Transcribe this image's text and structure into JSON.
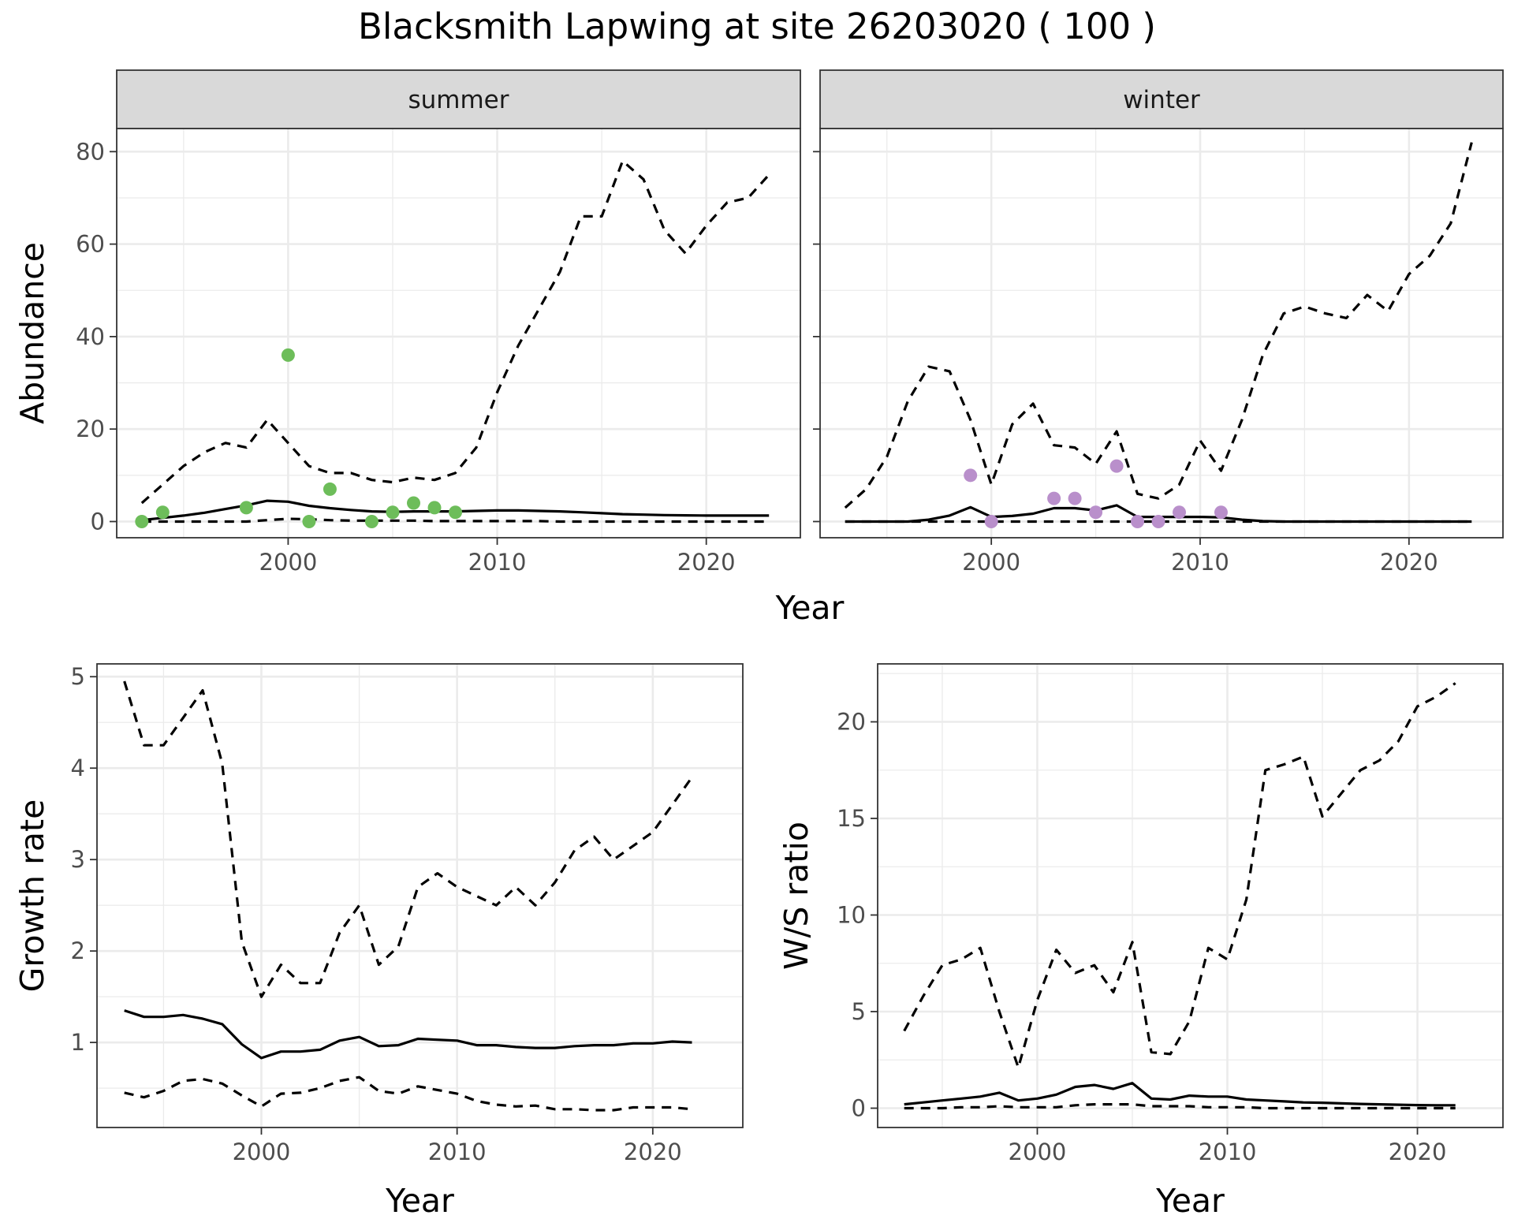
{
  "title": "Blacksmith Lapwing at site 26203020 ( 100 )",
  "colors": {
    "summer_points": "#6dbd5a",
    "winter_points": "#b98fcb",
    "line": "#000000",
    "strip_fill": "#d9d9d9",
    "grid": "#ebebeb"
  },
  "chart_data": [
    {
      "type": "scatter",
      "facet": "summer",
      "xlabel": "Year",
      "ylabel": "Abundance",
      "xlim": [
        1991.8,
        2024.5
      ],
      "ylim": [
        -3.5,
        85
      ],
      "xticks": [
        2000,
        2010,
        2020
      ],
      "yticks": [
        0,
        20,
        40,
        60,
        80
      ],
      "grid": true,
      "points": {
        "x": [
          1993,
          1994,
          1998,
          2000,
          2001,
          2002,
          2004,
          2005,
          2006,
          2007,
          2008
        ],
        "y": [
          0,
          2,
          3,
          36,
          0,
          7,
          0,
          2,
          4,
          3,
          2
        ]
      },
      "mean": {
        "x": [
          1993,
          1994,
          1995,
          1996,
          1997,
          1998,
          1999,
          2000,
          2001,
          2002,
          2003,
          2004,
          2005,
          2006,
          2007,
          2008,
          2009,
          2010,
          2011,
          2012,
          2013,
          2014,
          2015,
          2016,
          2017,
          2018,
          2019,
          2020,
          2021,
          2022,
          2023
        ],
        "y": [
          0.3,
          0.8,
          1.3,
          1.9,
          2.7,
          3.5,
          4.5,
          4.3,
          3.4,
          2.9,
          2.5,
          2.2,
          2.1,
          2.2,
          2.2,
          2.2,
          2.3,
          2.4,
          2.4,
          2.3,
          2.2,
          2.0,
          1.8,
          1.6,
          1.5,
          1.4,
          1.35,
          1.3,
          1.3,
          1.3,
          1.3
        ]
      },
      "upper": {
        "x": [
          1993,
          1994,
          1995,
          1996,
          1997,
          1998,
          1999,
          2000,
          2001,
          2002,
          2003,
          2004,
          2005,
          2006,
          2007,
          2008,
          2009,
          2010,
          2011,
          2012,
          2013,
          2014,
          2015,
          2016,
          2017,
          2018,
          2019,
          2020,
          2021,
          2022,
          2023
        ],
        "y": [
          4,
          8,
          12,
          15,
          17,
          16,
          22,
          17,
          12,
          10.5,
          10.5,
          9,
          8.5,
          9.5,
          9,
          10.5,
          16,
          28,
          38,
          46,
          54,
          66,
          66,
          78,
          74,
          63,
          58,
          64,
          69,
          70,
          75
        ]
      },
      "lower": {
        "x": [
          1993,
          1994,
          1995,
          1996,
          1997,
          1998,
          1999,
          2000,
          2001,
          2002,
          2003,
          2004,
          2005,
          2006,
          2007,
          2008,
          2009,
          2010,
          2011,
          2012,
          2013,
          2014,
          2015,
          2016,
          2017,
          2018,
          2019,
          2020,
          2021,
          2022,
          2023
        ],
        "y": [
          0,
          0,
          0,
          0,
          0,
          0,
          0.3,
          0.6,
          0.5,
          0.3,
          0.2,
          0.2,
          0.2,
          0.2,
          0.1,
          0.1,
          0.1,
          0.1,
          0.1,
          0.1,
          0,
          0,
          0,
          0,
          0,
          0,
          0,
          0,
          0,
          0,
          0
        ]
      }
    },
    {
      "type": "scatter",
      "facet": "winter",
      "xlabel": "Year",
      "ylabel": "Abundance",
      "xlim": [
        1991.8,
        2024.5
      ],
      "ylim": [
        -3.5,
        85
      ],
      "xticks": [
        2000,
        2010,
        2020
      ],
      "yticks": [
        0,
        20,
        40,
        60,
        80
      ],
      "grid": true,
      "points": {
        "x": [
          1999,
          2000,
          2003,
          2004,
          2005,
          2006,
          2007,
          2008,
          2009,
          2011
        ],
        "y": [
          10,
          0,
          5,
          5,
          2,
          12,
          0,
          0,
          2,
          2
        ]
      },
      "mean": {
        "x": [
          1993,
          1994,
          1995,
          1996,
          1997,
          1998,
          1999,
          2000,
          2001,
          2002,
          2003,
          2004,
          2005,
          2006,
          2007,
          2008,
          2009,
          2010,
          2011,
          2012,
          2013,
          2014,
          2015,
          2016,
          2017,
          2018,
          2019,
          2020,
          2021,
          2022,
          2023
        ],
        "y": [
          0,
          0,
          0,
          0,
          0.4,
          1.3,
          3.1,
          1.0,
          1.2,
          1.7,
          2.9,
          2.9,
          2.4,
          3.5,
          1.0,
          1.0,
          1.0,
          1.0,
          0.9,
          0.4,
          0.1,
          0,
          0,
          0,
          0,
          0,
          0,
          0,
          0,
          0,
          0
        ]
      },
      "upper": {
        "x": [
          1993,
          1994,
          1995,
          1996,
          1997,
          1998,
          1999,
          2000,
          2001,
          2002,
          2003,
          2004,
          2005,
          2006,
          2007,
          2008,
          2009,
          2010,
          2011,
          2012,
          2013,
          2014,
          2015,
          2016,
          2017,
          2018,
          2019,
          2020,
          2021,
          2022,
          2023
        ],
        "y": [
          3,
          7,
          14,
          26,
          33.5,
          32.5,
          22,
          8,
          21,
          25.5,
          16.5,
          16,
          12.5,
          19.5,
          6,
          5,
          8,
          17.5,
          11,
          22,
          36,
          45,
          46.5,
          45,
          44,
          49,
          45.5,
          53.5,
          57.5,
          64.5,
          82
        ]
      },
      "lower": {
        "x": [
          1993,
          1994,
          1995,
          1996,
          1997,
          1998,
          1999,
          2000,
          2001,
          2002,
          2003,
          2004,
          2005,
          2006,
          2007,
          2008,
          2009,
          2010,
          2011,
          2012,
          2013,
          2014,
          2015,
          2016,
          2017,
          2018,
          2019,
          2020,
          2021,
          2022,
          2023
        ],
        "y": [
          0,
          0,
          0,
          0,
          0,
          0,
          0,
          0,
          0,
          0,
          0,
          0,
          0,
          0,
          0,
          0,
          0,
          0,
          0,
          0,
          0,
          0,
          0,
          0,
          0,
          0,
          0,
          0,
          0,
          0,
          0
        ]
      }
    },
    {
      "type": "line",
      "xlabel": "Year",
      "ylabel": "Growth rate",
      "xlim": [
        1991.6,
        2024.6
      ],
      "ylim": [
        0.07,
        5.14
      ],
      "xticks": [
        2000,
        2010,
        2020
      ],
      "yticks": [
        1,
        2,
        3,
        4,
        5
      ],
      "grid": true,
      "mean": {
        "x": [
          1993,
          1994,
          1995,
          1996,
          1997,
          1998,
          1999,
          2000,
          2001,
          2002,
          2003,
          2004,
          2005,
          2006,
          2007,
          2008,
          2009,
          2010,
          2011,
          2012,
          2013,
          2014,
          2015,
          2016,
          2017,
          2018,
          2019,
          2020,
          2021,
          2022
        ],
        "y": [
          1.35,
          1.28,
          1.28,
          1.3,
          1.26,
          1.2,
          0.98,
          0.83,
          0.9,
          0.9,
          0.92,
          1.02,
          1.06,
          0.96,
          0.97,
          1.04,
          1.03,
          1.02,
          0.97,
          0.97,
          0.95,
          0.94,
          0.94,
          0.96,
          0.97,
          0.97,
          0.99,
          0.99,
          1.01,
          1.0
        ]
      },
      "upper": {
        "x": [
          1993,
          1994,
          1995,
          1996,
          1997,
          1998,
          1999,
          2000,
          2001,
          2002,
          2003,
          2004,
          2005,
          2006,
          2007,
          2008,
          2009,
          2010,
          2011,
          2012,
          2013,
          2014,
          2015,
          2016,
          2017,
          2018,
          2019,
          2020,
          2021,
          2022
        ],
        "y": [
          4.95,
          4.25,
          4.25,
          4.55,
          4.85,
          4.05,
          2.1,
          1.5,
          1.85,
          1.65,
          1.65,
          2.2,
          2.5,
          1.85,
          2.05,
          2.7,
          2.85,
          2.7,
          2.6,
          2.5,
          2.7,
          2.5,
          2.75,
          3.1,
          3.25,
          3.0,
          3.15,
          3.3,
          3.6,
          3.9
        ]
      },
      "lower": {
        "x": [
          1993,
          1994,
          1995,
          1996,
          1997,
          1998,
          1999,
          2000,
          2001,
          2002,
          2003,
          2004,
          2005,
          2006,
          2007,
          2008,
          2009,
          2010,
          2011,
          2012,
          2013,
          2014,
          2015,
          2016,
          2017,
          2018,
          2019,
          2020,
          2021,
          2022
        ],
        "y": [
          0.45,
          0.4,
          0.47,
          0.58,
          0.6,
          0.55,
          0.42,
          0.3,
          0.44,
          0.45,
          0.5,
          0.58,
          0.62,
          0.47,
          0.44,
          0.52,
          0.48,
          0.44,
          0.36,
          0.32,
          0.3,
          0.31,
          0.27,
          0.27,
          0.26,
          0.26,
          0.29,
          0.29,
          0.29,
          0.27
        ]
      }
    },
    {
      "type": "line",
      "xlabel": "Year",
      "ylabel": "W/S ratio",
      "xlim": [
        1991.6,
        2024.5
      ],
      "ylim": [
        -1.0,
        23.0
      ],
      "xticks": [
        2000,
        2010,
        2020
      ],
      "yticks": [
        0,
        5,
        10,
        15,
        20
      ],
      "grid": true,
      "mean": {
        "x": [
          1993,
          1994,
          1995,
          1996,
          1997,
          1998,
          1999,
          2000,
          2001,
          2002,
          2003,
          2004,
          2005,
          2006,
          2007,
          2008,
          2009,
          2010,
          2011,
          2012,
          2013,
          2014,
          2015,
          2016,
          2017,
          2018,
          2019,
          2020,
          2021,
          2022
        ],
        "y": [
          0.2,
          0.3,
          0.4,
          0.5,
          0.6,
          0.8,
          0.4,
          0.5,
          0.7,
          1.1,
          1.2,
          1.0,
          1.3,
          0.5,
          0.45,
          0.65,
          0.6,
          0.6,
          0.45,
          0.4,
          0.35,
          0.3,
          0.28,
          0.25,
          0.22,
          0.2,
          0.18,
          0.16,
          0.15,
          0.15
        ]
      },
      "upper": {
        "x": [
          1993,
          1994,
          1995,
          1996,
          1997,
          1998,
          1999,
          2000,
          2001,
          2002,
          2003,
          2004,
          2005,
          2006,
          2007,
          2008,
          2009,
          2010,
          2011,
          2012,
          2013,
          2014,
          2015,
          2016,
          2017,
          2018,
          2019,
          2020,
          2021,
          2022
        ],
        "y": [
          4.0,
          5.8,
          7.4,
          7.7,
          8.3,
          5.0,
          2.1,
          5.6,
          8.2,
          7.0,
          7.4,
          6.0,
          8.6,
          2.9,
          2.8,
          4.5,
          8.3,
          7.7,
          10.8,
          17.5,
          17.8,
          18.2,
          15.1,
          16.3,
          17.5,
          18.0,
          19.0,
          20.8,
          21.3,
          22.0
        ]
      },
      "lower": {
        "x": [
          1993,
          1994,
          1995,
          1996,
          1997,
          1998,
          1999,
          2000,
          2001,
          2002,
          2003,
          2004,
          2005,
          2006,
          2007,
          2008,
          2009,
          2010,
          2011,
          2012,
          2013,
          2014,
          2015,
          2016,
          2017,
          2018,
          2019,
          2020,
          2021,
          2022
        ],
        "y": [
          0,
          0,
          0,
          0.05,
          0.05,
          0.1,
          0.05,
          0.05,
          0.05,
          0.15,
          0.2,
          0.2,
          0.2,
          0.1,
          0.1,
          0.1,
          0.05,
          0.05,
          0.05,
          0,
          0,
          0,
          0,
          0,
          0,
          0,
          0,
          0,
          0,
          0
        ]
      }
    }
  ]
}
